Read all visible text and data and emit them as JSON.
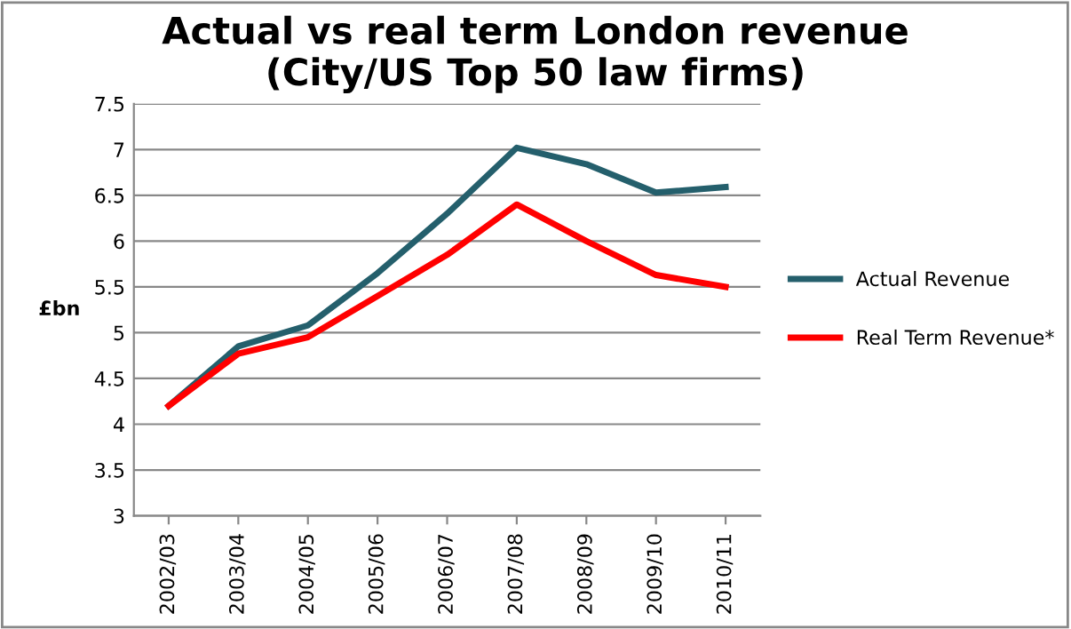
{
  "chart_data": {
    "type": "line",
    "title": "Actual vs real term London revenue\n(City/US Top 50 law firms)",
    "ylabel": "£bn",
    "categories": [
      "2002/03",
      "2003/04",
      "2004/05",
      "2005/06",
      "2006/07",
      "2007/08",
      "2008/09",
      "2009/10",
      "2010/11"
    ],
    "series": [
      {
        "name": "Actual Revenue",
        "color": "#245f6c",
        "values": [
          4.2,
          4.85,
          5.08,
          5.65,
          6.3,
          7.02,
          6.84,
          6.53,
          6.59
        ]
      },
      {
        "name": "Real Term Revenue*",
        "color": "#ff0000",
        "values": [
          4.2,
          4.77,
          4.95,
          5.4,
          5.85,
          6.4,
          6.0,
          5.63,
          5.5
        ]
      }
    ],
    "ylim": [
      3,
      7.5
    ],
    "yticks": [
      3,
      3.5,
      4,
      4.5,
      5,
      5.5,
      6,
      6.5,
      7,
      7.5
    ],
    "grid": "y",
    "legend": "right",
    "marker": "none",
    "line_style": "solid"
  }
}
